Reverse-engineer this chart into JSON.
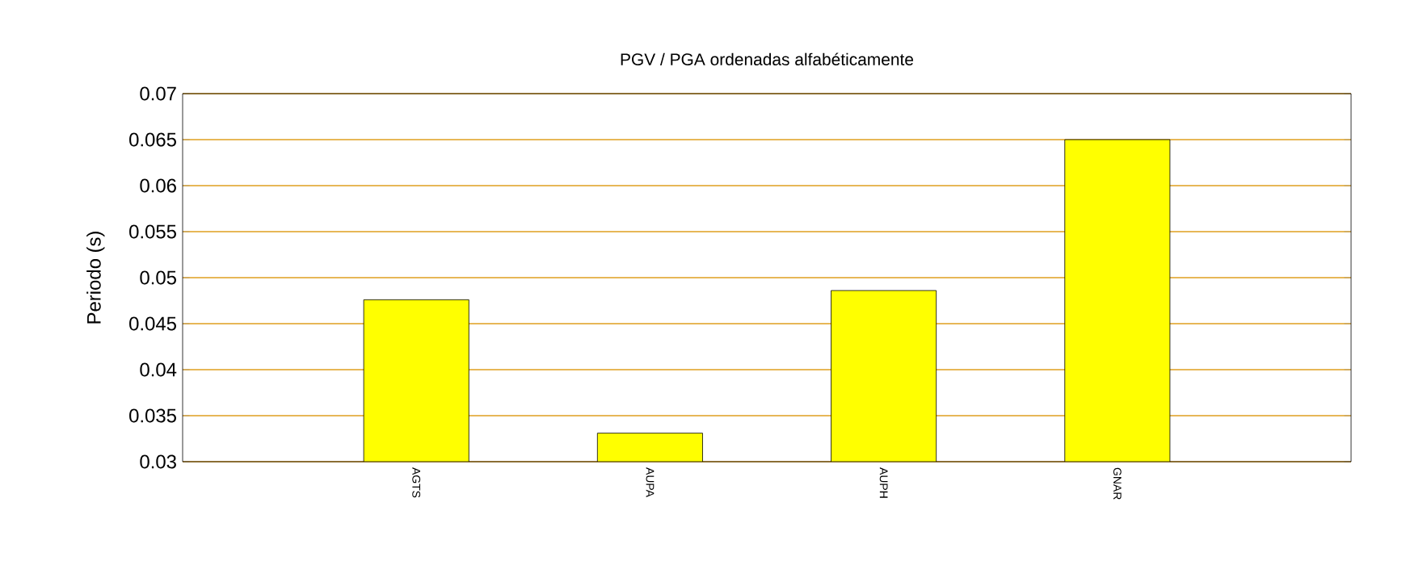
{
  "chart_data": {
    "type": "bar",
    "title": "PGV / PGA ordenadas alfabéticamente",
    "ylabel": "Periodo (s)",
    "categories": [
      "AGTS",
      "AUPA",
      "AUPH",
      "GNAR"
    ],
    "values": [
      0.0476,
      0.0331,
      0.0486,
      0.065
    ],
    "color": "#ffff00",
    "ylim": [
      0.03,
      0.07
    ],
    "yticks": [
      0.03,
      0.035,
      0.04,
      0.045,
      0.05,
      0.055,
      0.06,
      0.065,
      0.07
    ],
    "grid": "y"
  }
}
